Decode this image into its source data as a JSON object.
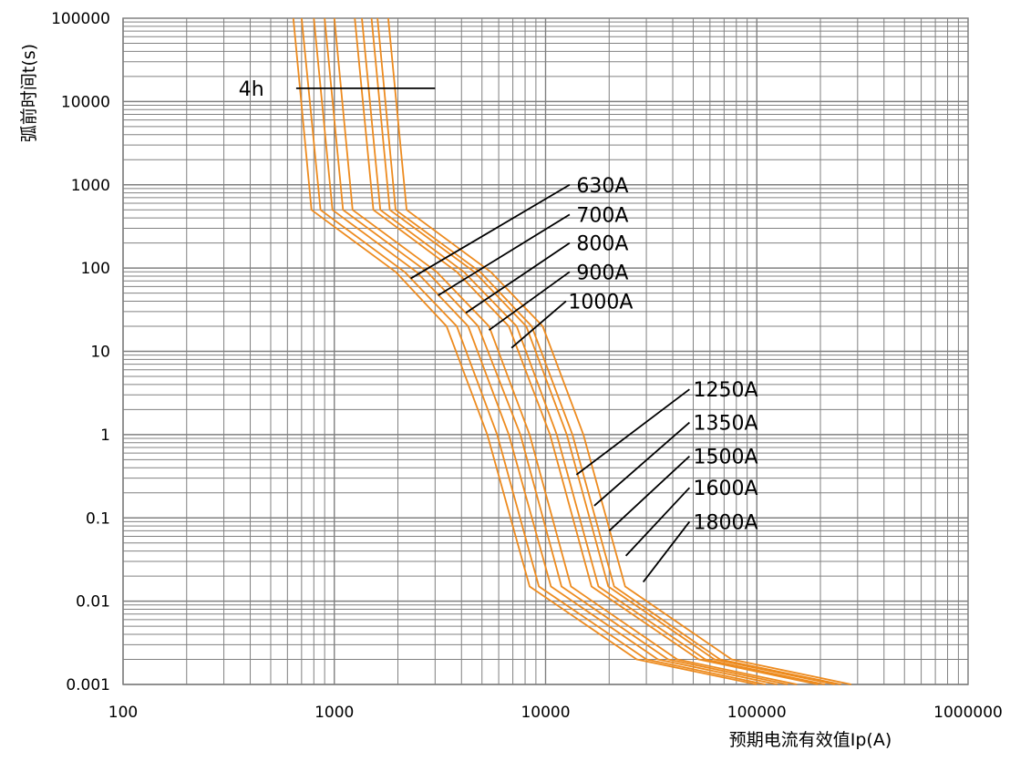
{
  "chart_data": {
    "type": "line",
    "title": "",
    "xlabel": "预期电流有效值Ip(A)",
    "ylabel": "弧前时间t(s)",
    "xscale": "log",
    "yscale": "log",
    "xlim": [
      100,
      1000000
    ],
    "ylim": [
      0.001,
      100000
    ],
    "grid": true,
    "legend": "none",
    "x_ticks": [
      "100",
      "1000",
      "10000",
      "100000",
      "1000000"
    ],
    "y_ticks": [
      "0.001",
      "0.01",
      "0.1",
      "1",
      "10",
      "100",
      "1000",
      "10000",
      "100000"
    ],
    "line_color": "#ed8b1f",
    "annotation_color": "#000000",
    "grid_color": "#808080",
    "series": [
      {
        "name": "630A",
        "points": [
          [
            640,
            100000
          ],
          [
            780,
            500
          ],
          [
            1950,
            90
          ],
          [
            3400,
            20
          ],
          [
            5300,
            1
          ],
          [
            8400,
            0.015
          ],
          [
            27000,
            0.002
          ],
          [
            100000,
            0.001
          ]
        ]
      },
      {
        "name": "700A",
        "points": [
          [
            700,
            100000
          ],
          [
            860,
            500
          ],
          [
            2150,
            90
          ],
          [
            3800,
            20
          ],
          [
            5900,
            1
          ],
          [
            9300,
            0.015
          ],
          [
            30000,
            0.002
          ],
          [
            110000,
            0.001
          ]
        ]
      },
      {
        "name": "800A",
        "points": [
          [
            800,
            100000
          ],
          [
            980,
            500
          ],
          [
            2450,
            90
          ],
          [
            4300,
            20
          ],
          [
            6700,
            1
          ],
          [
            10600,
            0.015
          ],
          [
            34000,
            0.002
          ],
          [
            125000,
            0.001
          ]
        ]
      },
      {
        "name": "900A",
        "points": [
          [
            900,
            100000
          ],
          [
            1100,
            500
          ],
          [
            2750,
            90
          ],
          [
            4800,
            20
          ],
          [
            7600,
            1
          ],
          [
            11900,
            0.015
          ],
          [
            38000,
            0.002
          ],
          [
            140000,
            0.001
          ]
        ]
      },
      {
        "name": "1000A",
        "points": [
          [
            1000,
            100000
          ],
          [
            1220,
            500
          ],
          [
            3050,
            90
          ],
          [
            5400,
            20
          ],
          [
            8400,
            1
          ],
          [
            13200,
            0.015
          ],
          [
            42000,
            0.002
          ],
          [
            155000,
            0.001
          ]
        ]
      },
      {
        "name": "1250A",
        "points": [
          [
            1250,
            100000
          ],
          [
            1530,
            500
          ],
          [
            3800,
            90
          ],
          [
            6700,
            20
          ],
          [
            10500,
            1
          ],
          [
            16500,
            0.015
          ],
          [
            53000,
            0.002
          ],
          [
            195000,
            0.001
          ]
        ]
      },
      {
        "name": "1350A",
        "points": [
          [
            1350,
            100000
          ],
          [
            1650,
            500
          ],
          [
            4100,
            90
          ],
          [
            7300,
            20
          ],
          [
            11300,
            1
          ],
          [
            17800,
            0.015
          ],
          [
            57000,
            0.002
          ],
          [
            210000,
            0.001
          ]
        ]
      },
      {
        "name": "1500A",
        "points": [
          [
            1500,
            100000
          ],
          [
            1830,
            500
          ],
          [
            4600,
            90
          ],
          [
            8100,
            20
          ],
          [
            12600,
            1
          ],
          [
            19800,
            0.015
          ],
          [
            63000,
            0.002
          ],
          [
            235000,
            0.001
          ]
        ]
      },
      {
        "name": "1600A",
        "points": [
          [
            1600,
            100000
          ],
          [
            1950,
            500
          ],
          [
            4900,
            90
          ],
          [
            8600,
            20
          ],
          [
            13400,
            1
          ],
          [
            21100,
            0.015
          ],
          [
            67000,
            0.002
          ],
          [
            250000,
            0.001
          ]
        ]
      },
      {
        "name": "1800A",
        "points": [
          [
            1800,
            100000
          ],
          [
            2200,
            500
          ],
          [
            5500,
            90
          ],
          [
            9700,
            20
          ],
          [
            15100,
            1
          ],
          [
            23800,
            0.015
          ],
          [
            76000,
            0.002
          ],
          [
            280000,
            0.001
          ]
        ]
      }
    ],
    "annotations": [
      {
        "label": "4h",
        "text_x": 465,
        "text_y": 14400,
        "anchor": "end",
        "leader_from": [
          660,
          14400
        ],
        "leader_to": [
          3000,
          14400
        ]
      },
      {
        "label": "630A",
        "text_x": 14000,
        "text_y": 1000,
        "anchor": "start",
        "leader_from": [
          13000,
          1000
        ],
        "leader_to": [
          2300,
          75
        ]
      },
      {
        "label": "700A",
        "text_x": 14000,
        "text_y": 440,
        "anchor": "start",
        "leader_from": [
          13000,
          440
        ],
        "leader_to": [
          3100,
          47
        ]
      },
      {
        "label": "800A",
        "text_x": 14000,
        "text_y": 200,
        "anchor": "start",
        "leader_from": [
          13000,
          200
        ],
        "leader_to": [
          4200,
          29
        ]
      },
      {
        "label": "900A",
        "text_x": 14000,
        "text_y": 90,
        "anchor": "start",
        "leader_from": [
          13000,
          90
        ],
        "leader_to": [
          5400,
          18
        ]
      },
      {
        "label": "1000A",
        "text_x": 12800,
        "text_y": 40,
        "anchor": "start",
        "leader_from": [
          12500,
          40
        ],
        "leader_to": [
          6900,
          11
        ]
      },
      {
        "label": "1250A",
        "text_x": 50000,
        "text_y": 3.5,
        "anchor": "start",
        "leader_from": [
          48000,
          3.5
        ],
        "leader_to": [
          14000,
          0.33
        ]
      },
      {
        "label": "1350A",
        "text_x": 50000,
        "text_y": 1.4,
        "anchor": "start",
        "leader_from": [
          48000,
          1.4
        ],
        "leader_to": [
          17000,
          0.14
        ]
      },
      {
        "label": "1500A",
        "text_x": 50000,
        "text_y": 0.55,
        "anchor": "start",
        "leader_from": [
          48000,
          0.55
        ],
        "leader_to": [
          20000,
          0.07
        ]
      },
      {
        "label": "1600A",
        "text_x": 50000,
        "text_y": 0.23,
        "anchor": "start",
        "leader_from": [
          48000,
          0.23
        ],
        "leader_to": [
          24000,
          0.035
        ]
      },
      {
        "label": "1800A",
        "text_x": 50000,
        "text_y": 0.09,
        "anchor": "start",
        "leader_from": [
          48000,
          0.09
        ],
        "leader_to": [
          29000,
          0.017
        ]
      }
    ]
  }
}
